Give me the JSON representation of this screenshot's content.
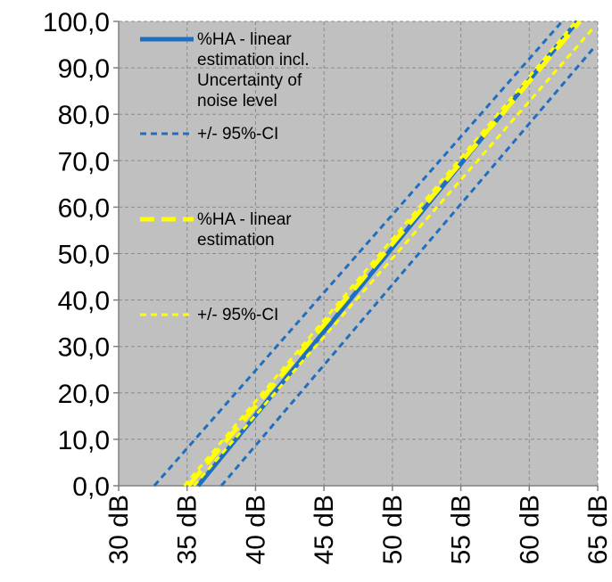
{
  "chart_data": {
    "type": "line",
    "title": "",
    "xlabel": "",
    "ylabel": "",
    "xlim": [
      30,
      65
    ],
    "ylim": [
      0,
      100
    ],
    "grid": true,
    "plot_background": "#c0c0c0",
    "x_ticks": [
      30,
      35,
      40,
      45,
      50,
      55,
      60,
      65
    ],
    "x_tick_labels": [
      "30 dB",
      "35 dB",
      "40 dB",
      "45 dB",
      "50 dB",
      "55 dB",
      "60 dB",
      "65 dB"
    ],
    "y_ticks": [
      0,
      10,
      20,
      30,
      40,
      50,
      60,
      70,
      80,
      90,
      100
    ],
    "y_tick_labels": [
      "0,0",
      "10,0",
      "20,0",
      "30,0",
      "40,0",
      "50,0",
      "60,0",
      "70,0",
      "80,0",
      "90,0",
      "100,0"
    ],
    "legend_position": "top-left",
    "series": [
      {
        "name": "%HA - linear estimation incl. Uncertainty of noise level",
        "legend_lines": [
          "%HA - linear",
          "estimation incl.",
          "Uncertainty of",
          "noise level"
        ],
        "color": "#1f6fc0",
        "style": "solid",
        "x": [
          35.8,
          63.5
        ],
        "y": [
          0,
          100
        ]
      },
      {
        "name": "+/- 95%-CI",
        "legend_lines": [
          "+/- 95%-CI"
        ],
        "color": "#1f6fc0",
        "style": "dashed",
        "x": [
          32.6,
          62.4
        ],
        "y": [
          0,
          100
        ]
      },
      {
        "name": "+/- 95%-CI",
        "legend_lines": [],
        "color": "#1f6fc0",
        "style": "dashed",
        "x": [
          37.5,
          64.8
        ],
        "y": [
          0,
          94.6
        ]
      },
      {
        "name": "%HA - linear estimation",
        "legend_lines": [
          "%HA - linear",
          "estimation"
        ],
        "color": "#ffff00",
        "style": "longdash",
        "x": [
          35.1,
          63.7
        ],
        "y": [
          0,
          100
        ]
      },
      {
        "name": "+/- 95%-CI",
        "legend_lines": [
          "+/- 95%-CI"
        ],
        "color": "#ffff00",
        "style": "dashed",
        "x": [
          34.8,
          63.4
        ],
        "y": [
          0,
          100
        ]
      },
      {
        "name": "+/- 95%-CI",
        "legend_lines": [],
        "color": "#ffff00",
        "style": "dashed",
        "x": [
          35.5,
          64.8
        ],
        "y": [
          0,
          99
        ]
      }
    ]
  }
}
